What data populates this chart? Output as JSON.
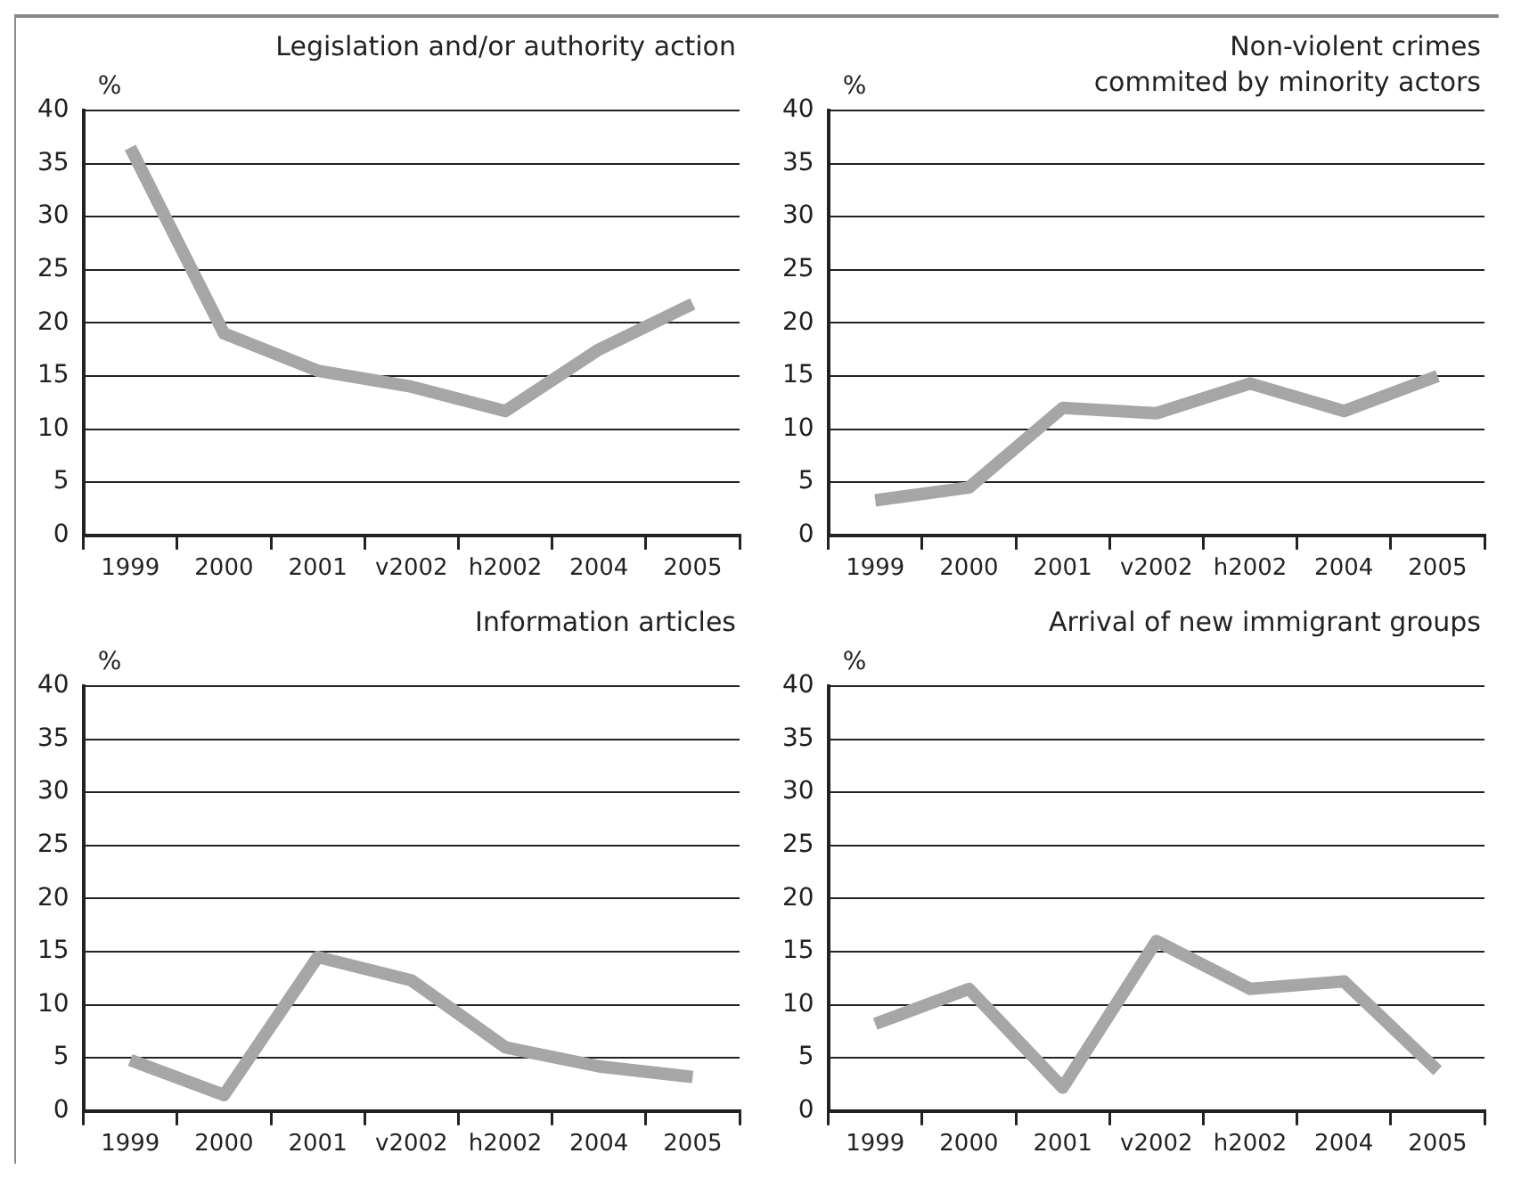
{
  "chart_data": [
    {
      "type": "line",
      "title": "Legislation and/or authority action",
      "ylabel": "%",
      "categories": [
        "1999",
        "2000",
        "2001",
        "v2002",
        "h2002",
        "2004",
        "2005"
      ],
      "series": [
        {
          "color": "#a6a6a8",
          "values": [
            36.5,
            19,
            15.5,
            14,
            11.7,
            17.5,
            21.8
          ]
        }
      ],
      "ylim": [
        0,
        40
      ],
      "yticks": [
        0,
        5,
        10,
        15,
        20,
        25,
        30,
        35,
        40
      ],
      "grid": "y",
      "legend": false,
      "marker": "none",
      "line_style": "solid"
    },
    {
      "type": "line",
      "title": "Non-violent crimes commited by minority actors",
      "ylabel": "%",
      "categories": [
        "1999",
        "2000",
        "2001",
        "v2002",
        "h2002",
        "2004",
        "2005"
      ],
      "series": [
        {
          "color": "#a6a6a8",
          "values": [
            3.3,
            4.5,
            12,
            11.5,
            14.3,
            11.7,
            15
          ]
        }
      ],
      "ylim": [
        0,
        40
      ],
      "yticks": [
        0,
        5,
        10,
        15,
        20,
        25,
        30,
        35,
        40
      ],
      "grid": "y",
      "legend": false,
      "marker": "none",
      "line_style": "solid"
    },
    {
      "type": "line",
      "title": "Information articles",
      "ylabel": "%",
      "categories": [
        "1999",
        "2000",
        "2001",
        "v2002",
        "h2002",
        "2004",
        "2005"
      ],
      "series": [
        {
          "color": "#a6a6a8",
          "values": [
            4.8,
            1.5,
            14.5,
            12.3,
            6,
            4.2,
            3.2
          ]
        }
      ],
      "ylim": [
        0,
        40
      ],
      "yticks": [
        0,
        5,
        10,
        15,
        20,
        25,
        30,
        35,
        40
      ],
      "grid": "y",
      "legend": false,
      "marker": "none",
      "line_style": "solid"
    },
    {
      "type": "line",
      "title": "Arrival of new immigrant groups",
      "ylabel": "%",
      "categories": [
        "1999",
        "2000",
        "2001",
        "v2002",
        "h2002",
        "2004",
        "2005"
      ],
      "series": [
        {
          "color": "#a6a6a8",
          "values": [
            8.2,
            11.5,
            2.2,
            16,
            11.5,
            12.2,
            3.8
          ]
        }
      ],
      "ylim": [
        0,
        40
      ],
      "yticks": [
        0,
        5,
        10,
        15,
        20,
        25,
        30,
        35,
        40
      ],
      "grid": "y",
      "legend": false,
      "marker": "none",
      "line_style": "solid"
    }
  ]
}
